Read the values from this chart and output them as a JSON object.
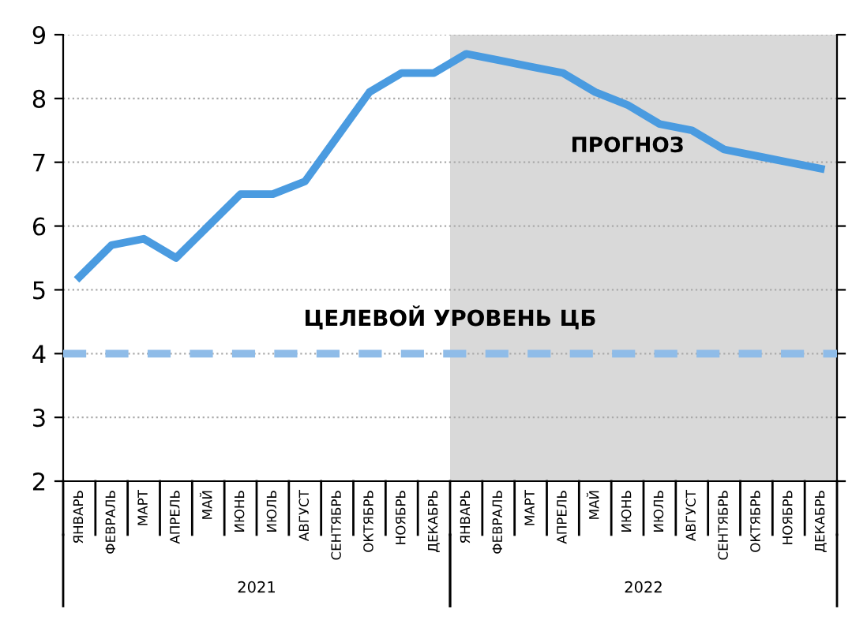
{
  "chart_data": {
    "type": "line",
    "categories": [
      "ЯНВАРЬ",
      "ФЕВРАЛЬ",
      "МАРТ",
      "АПРЕЛЬ",
      "МАЙ",
      "ИЮНЬ",
      "ИЮЛЬ",
      "АВГУСТ",
      "СЕНТЯБРЬ",
      "ОКТЯБРЬ",
      "НОЯБРЬ",
      "ДЕКАБРЬ",
      "ЯНВАРЬ",
      "ФЕВРАЛЬ",
      "МАРТ",
      "АПРЕЛЬ",
      "МАЙ",
      "ИЮНЬ",
      "ИЮЛЬ",
      "АВГУСТ",
      "СЕНТЯБРЬ",
      "ОКТЯБРЬ",
      "НОЯБРЬ",
      "ДЕКАБРЬ"
    ],
    "series": [
      {
        "color": "#4a9be0",
        "values": [
          5.2,
          5.7,
          5.8,
          5.5,
          6.0,
          6.5,
          6.5,
          6.7,
          7.4,
          8.1,
          8.4,
          8.4,
          8.7,
          8.6,
          8.5,
          8.4,
          8.1,
          7.9,
          7.6,
          7.5,
          7.2,
          7.1,
          7.0,
          6.9
        ]
      }
    ],
    "ylim": [
      2,
      9
    ],
    "yticks": [
      2,
      3,
      4,
      5,
      6,
      7,
      8,
      9
    ],
    "grid": "y",
    "marker": "none",
    "line_style": "solid",
    "legend": false,
    "ref_lines": [
      {
        "axis": "y",
        "value": 4,
        "label": "ЦЕЛЕВОЙ УРОВЕНЬ ЦБ",
        "color": "#8fbce8",
        "line_style": "dashed"
      }
    ],
    "annotations": [
      "2021",
      "2022",
      "ПРОГНОЗ"
    ]
  }
}
